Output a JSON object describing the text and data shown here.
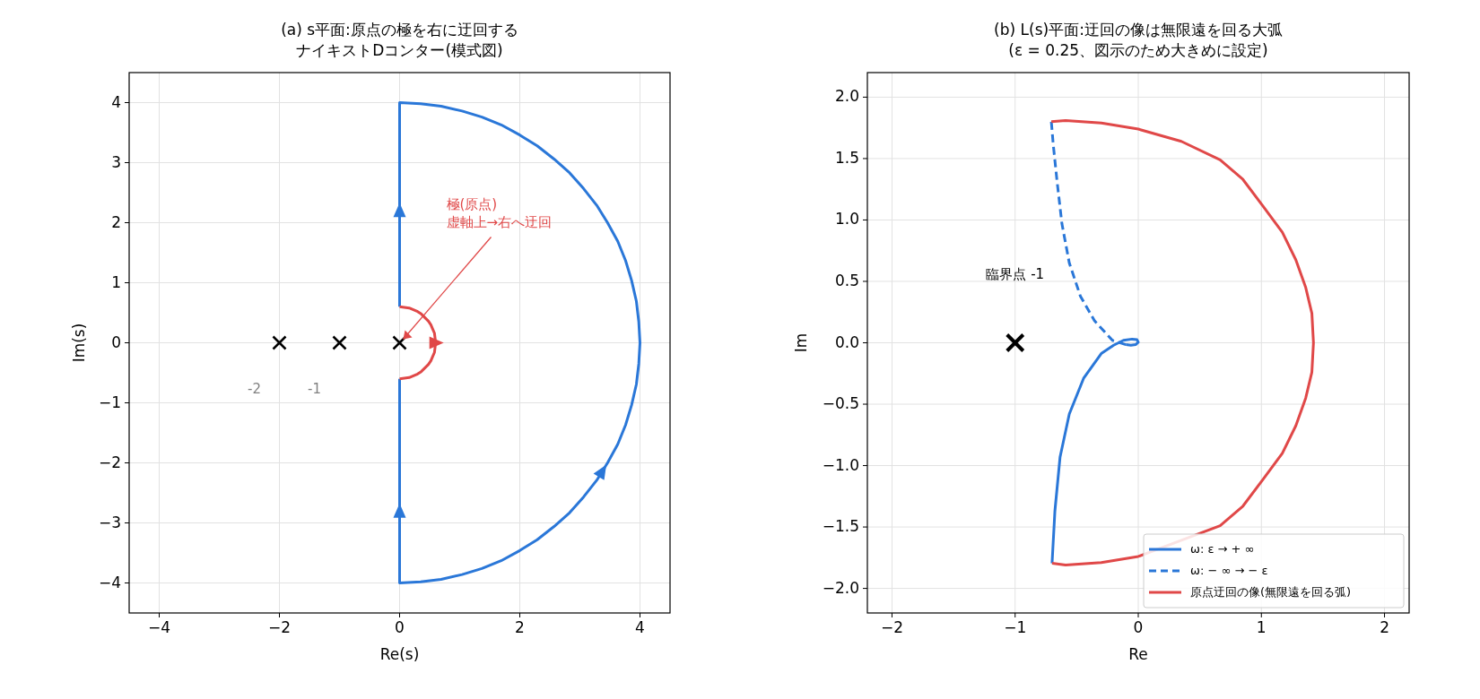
{
  "chart_data": [
    {
      "type": "line",
      "title": "(a) s平面:原点の極を右に迂回するナイキストDコンター(模式図)",
      "xlabel": "Re(s)",
      "ylabel": "Im(s)",
      "xlim": [
        -4.5,
        4.5
      ],
      "ylim": [
        -4.5,
        4.5
      ],
      "xticks": [
        {
          "value": -4,
          "label": "−4"
        },
        {
          "value": -2,
          "label": "−2"
        },
        0,
        2,
        4
      ],
      "yticks": [
        {
          "value": -4,
          "label": "−4"
        },
        {
          "value": -3,
          "label": "−3"
        },
        {
          "value": -2,
          "label": "−2"
        },
        {
          "value": -1,
          "label": "−1"
        },
        0,
        1,
        2,
        3,
        4
      ],
      "grid": true,
      "legend": false,
      "series": [
        {
          "color": "#2a77d8",
          "x": [
            0,
            0,
            0.35,
            0.69,
            1.04,
            1.37,
            1.69,
            2,
            2.29,
            2.57,
            2.83,
            3.06,
            3.28,
            3.46,
            3.63,
            3.76,
            3.86,
            3.94,
            3.98,
            4,
            3.98,
            3.94,
            3.86,
            3.76,
            3.63,
            3.46,
            3.28,
            3.06,
            2.83,
            2.57,
            2.29,
            2,
            1.69,
            1.37,
            1.04,
            0.69,
            0.35,
            0,
            0
          ],
          "values": [
            0.6,
            4,
            3.98,
            3.94,
            3.86,
            3.76,
            3.63,
            3.46,
            3.28,
            3.06,
            2.83,
            2.57,
            2.29,
            2,
            1.69,
            1.37,
            1.04,
            0.69,
            0.35,
            0,
            -0.35,
            -0.69,
            -1.04,
            -1.37,
            -1.69,
            -2,
            -2.29,
            -2.57,
            -2.83,
            -3.06,
            -3.28,
            -3.46,
            -3.63,
            -3.76,
            -3.86,
            -3.94,
            -3.98,
            -4,
            -0.6
          ]
        },
        {
          "color": "#e04848",
          "x": [
            0,
            0.08,
            0.16,
            0.23,
            0.3,
            0.36,
            0.42,
            0.48,
            0.52,
            0.55,
            0.58,
            0.59,
            0.6,
            0.59,
            0.58,
            0.55,
            0.52,
            0.48,
            0.42,
            0.36,
            0.3,
            0.23,
            0.16,
            0.08,
            0
          ],
          "values": [
            0.6,
            0.59,
            0.58,
            0.55,
            0.52,
            0.48,
            0.42,
            0.36,
            0.3,
            0.23,
            0.16,
            0.08,
            0,
            -0.08,
            -0.16,
            -0.23,
            -0.3,
            -0.36,
            -0.42,
            -0.48,
            -0.52,
            -0.55,
            -0.58,
            -0.59,
            -0.6
          ]
        },
        {
          "type": "scatter",
          "color": "#000000",
          "marker": "cross",
          "x": [
            -2,
            -1,
            0
          ],
          "values": [
            0,
            0,
            0
          ]
        }
      ],
      "annotations": [
        "-2",
        "-1",
        {
          "text": "極(原点)\n虚軸上→右へ迂回",
          "x": 0,
          "y": 0
        }
      ]
    },
    {
      "type": "line",
      "title": "(b) L(s)平面:迂回の像は無限遠を回る大弧\n(ε = 0.25、図示のため大きめに設定)",
      "xlabel": "Re",
      "ylabel": "Im",
      "xlim": [
        -2.2,
        2.2
      ],
      "ylim": [
        -2.2,
        2.2
      ],
      "xticks": [
        {
          "value": -2,
          "label": "−2"
        },
        {
          "value": -1,
          "label": "−1"
        },
        0,
        1,
        2
      ],
      "yticks": [
        {
          "value": -2,
          "label": "−2.0"
        },
        {
          "value": -1.5,
          "label": "−1.5"
        },
        {
          "value": -1,
          "label": "−1.0"
        },
        {
          "value": -0.5,
          "label": "−0.5"
        },
        {
          "value": 0,
          "label": "0.0"
        },
        0.5,
        {
          "value": 1,
          "label": "1.0"
        },
        1.5,
        {
          "value": 2,
          "label": "2.0"
        }
      ],
      "grid": true,
      "legend": "bottom right",
      "series": [
        {
          "name": "ω:  ε → + ∞",
          "color": "#2a77d8",
          "x": [
            -0.7,
            -0.677,
            -0.635,
            -0.56,
            -0.444,
            -0.298,
            -0.2,
            -0.12,
            -0.05,
            -0.01,
            0,
            -0.02,
            -0.06,
            -0.1
          ],
          "values": [
            -1.795,
            -1.37,
            -0.93,
            -0.58,
            -0.29,
            -0.085,
            -0.02,
            0.02,
            0.03,
            0.025,
            0.005,
            -0.015,
            -0.02,
            -0.015
          ]
        },
        {
          "name": "ω:  − ∞ → − ε",
          "color": "#2a77d8",
          "line_style": "dashed",
          "x": [
            -0.1,
            -0.21,
            -0.356,
            -0.47,
            -0.56,
            -0.62,
            -0.66,
            -0.69,
            -0.706
          ],
          "values": [
            -0.015,
            0.02,
            0.18,
            0.38,
            0.65,
            0.97,
            1.32,
            1.61,
            1.8
          ]
        },
        {
          "name": "原点迂回の像(無限遠を回る弧)",
          "color": "#e04848",
          "x": [
            -0.706,
            -0.59,
            -0.3,
            0,
            0.35,
            0.665,
            0.85,
            1.015,
            1.17,
            1.28,
            1.36,
            1.41,
            1.423,
            1.41,
            1.36,
            1.28,
            1.17,
            1.015,
            0.85,
            0.665,
            0,
            -0.3,
            -0.59,
            -0.7
          ],
          "values": [
            1.8,
            1.81,
            1.79,
            1.74,
            1.64,
            1.49,
            1.33,
            1.11,
            0.9,
            0.675,
            0.45,
            0.24,
            0,
            -0.24,
            -0.45,
            -0.675,
            -0.9,
            -1.11,
            -1.33,
            -1.49,
            -1.74,
            -1.79,
            -1.81,
            -1.795
          ]
        },
        {
          "type": "scatter",
          "color": "#000000",
          "marker": "cross",
          "x": [
            -1
          ],
          "values": [
            0
          ]
        }
      ],
      "annotations": [
        "臨界点 -1"
      ]
    }
  ]
}
